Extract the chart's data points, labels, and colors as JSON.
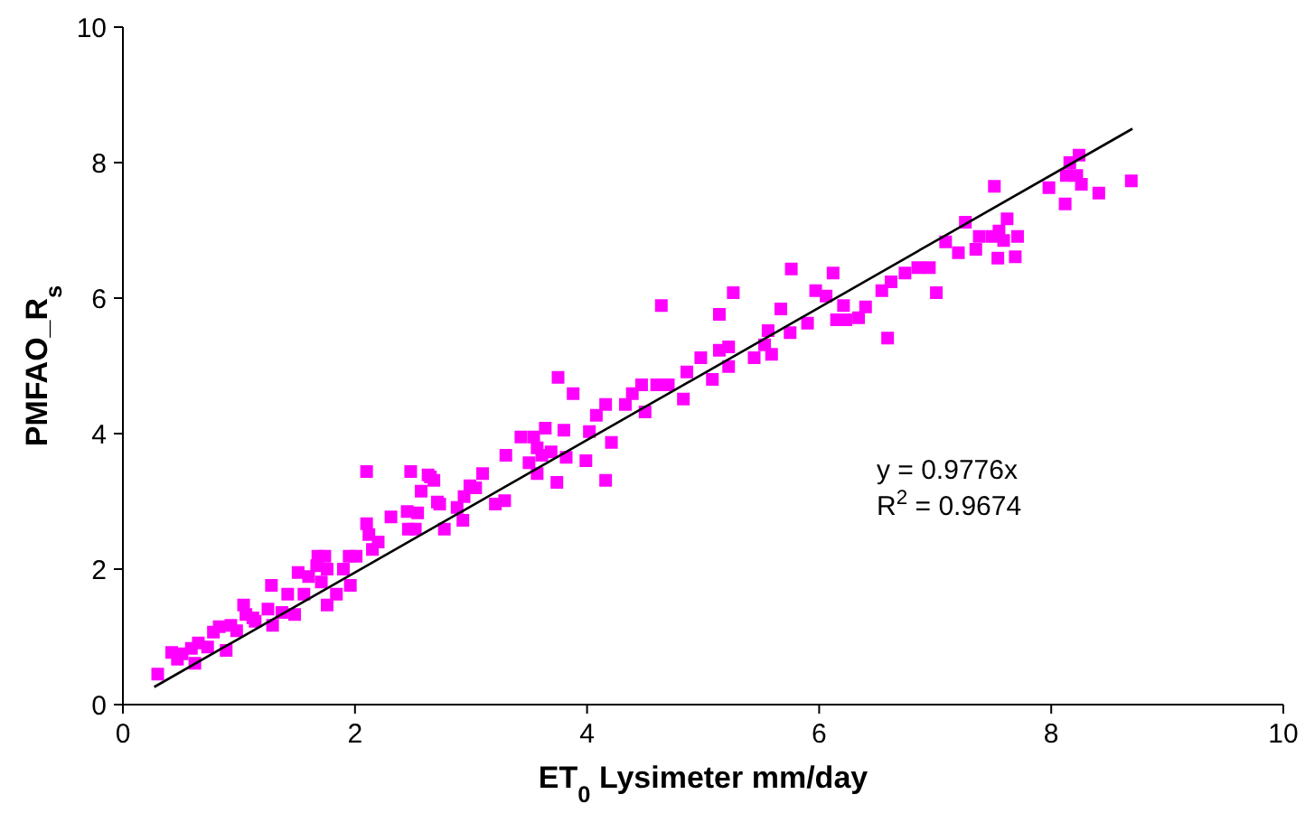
{
  "chart_data": {
    "type": "scatter",
    "xlabel": "ET$_{0}$ Lysimeter  mm/day",
    "ylabel": "PMFAO_R$_{s}$",
    "xlim": [
      0,
      10
    ],
    "ylim": [
      0,
      10
    ],
    "xticks": [
      0,
      2,
      4,
      6,
      8,
      10
    ],
    "yticks": [
      0,
      2,
      4,
      6,
      8,
      10
    ],
    "grid": false,
    "annotations": [
      "y = 0.9776x",
      "R$^{2}$ = 0.9674"
    ],
    "series": [
      {
        "marker": "square",
        "color": "#ff00ff",
        "x": [
          0.3,
          0.42,
          0.47,
          0.51,
          0.59,
          0.65,
          0.62,
          0.73,
          0.78,
          0.83,
          0.89,
          0.93,
          0.98,
          1.04,
          1.06,
          1.12,
          1.14,
          1.25,
          1.28,
          1.29,
          1.37,
          1.42,
          1.48,
          1.51,
          1.56,
          1.6,
          1.67,
          1.68,
          1.74,
          1.76,
          1.71,
          1.76,
          1.84,
          1.9,
          1.95,
          1.96,
          2.01,
          2.1,
          2.12,
          2.15,
          2.2,
          2.31,
          2.45,
          2.46,
          2.54,
          2.52,
          2.1,
          2.48,
          2.57,
          2.65,
          2.71,
          2.77,
          2.63,
          2.68,
          3.1,
          2.99,
          3.04,
          2.73,
          2.94,
          2.88,
          2.93,
          3.21,
          3.29,
          3.3,
          3.43,
          3.54,
          3.64,
          3.8,
          3.75,
          3.88,
          3.57,
          3.61,
          3.69,
          3.5,
          3.57,
          3.74,
          3.82,
          3.99,
          4.02,
          4.08,
          4.16,
          4.21,
          4.16,
          4.33,
          4.39,
          4.47,
          4.5,
          4.64,
          5.26,
          5.14,
          5.76,
          6.12,
          5.97,
          6.06,
          5.67,
          6.21,
          6.15,
          6.23,
          6.34,
          5.56,
          5.75,
          5.9,
          5.53,
          5.59,
          5.44,
          5.22,
          5.14,
          4.98,
          5.08,
          5.22,
          4.86,
          4.7,
          4.6,
          4.83,
          7.51,
          7.26,
          7.38,
          7.62,
          7.49,
          7.55,
          7.59,
          7.71,
          7.69,
          7.54,
          7.35,
          7.2,
          7.09,
          6.95,
          6.85,
          6.74,
          6.62,
          6.54,
          7.01,
          6.4,
          6.59,
          7.98,
          8.12,
          8.13,
          8.16,
          8.24,
          8.22,
          8.26,
          8.41,
          8.69
        ],
        "values": [
          0.45,
          0.77,
          0.67,
          0.75,
          0.83,
          0.91,
          0.61,
          0.85,
          1.07,
          1.15,
          0.8,
          1.17,
          1.09,
          1.47,
          1.33,
          1.28,
          1.23,
          1.41,
          1.76,
          1.17,
          1.36,
          1.63,
          1.33,
          1.95,
          1.63,
          1.89,
          2.05,
          2.19,
          2.19,
          2.0,
          1.81,
          1.47,
          1.63,
          2.0,
          2.19,
          1.76,
          2.19,
          2.67,
          2.51,
          2.29,
          2.4,
          2.77,
          2.85,
          2.59,
          2.83,
          2.59,
          3.44,
          3.44,
          3.15,
          3.36,
          2.99,
          2.59,
          3.39,
          3.31,
          3.41,
          3.23,
          3.2,
          2.96,
          3.07,
          2.91,
          2.72,
          2.96,
          3.01,
          3.68,
          3.95,
          3.95,
          4.08,
          4.05,
          4.83,
          4.59,
          3.79,
          3.68,
          3.73,
          3.57,
          3.41,
          3.28,
          3.65,
          3.6,
          4.03,
          4.27,
          4.43,
          3.87,
          3.31,
          4.43,
          4.59,
          4.72,
          4.32,
          5.89,
          6.08,
          5.76,
          6.43,
          6.37,
          6.11,
          6.03,
          5.84,
          5.89,
          5.68,
          5.68,
          5.71,
          5.52,
          5.49,
          5.63,
          5.31,
          5.17,
          5.12,
          5.28,
          5.23,
          5.12,
          4.8,
          4.99,
          4.91,
          4.72,
          4.72,
          4.51,
          7.65,
          7.12,
          6.91,
          7.17,
          6.91,
          6.99,
          6.85,
          6.91,
          6.61,
          6.59,
          6.72,
          6.67,
          6.83,
          6.45,
          6.45,
          6.37,
          6.24,
          6.11,
          6.08,
          5.87,
          5.41,
          7.63,
          7.39,
          7.81,
          8.0,
          8.11,
          7.81,
          7.68,
          7.55,
          7.73
        ]
      },
      {
        "type": "line",
        "marker": "none",
        "color": "#000000",
        "x": [
          0.27,
          8.7
        ],
        "values": [
          0.26,
          8.5
        ]
      }
    ]
  }
}
